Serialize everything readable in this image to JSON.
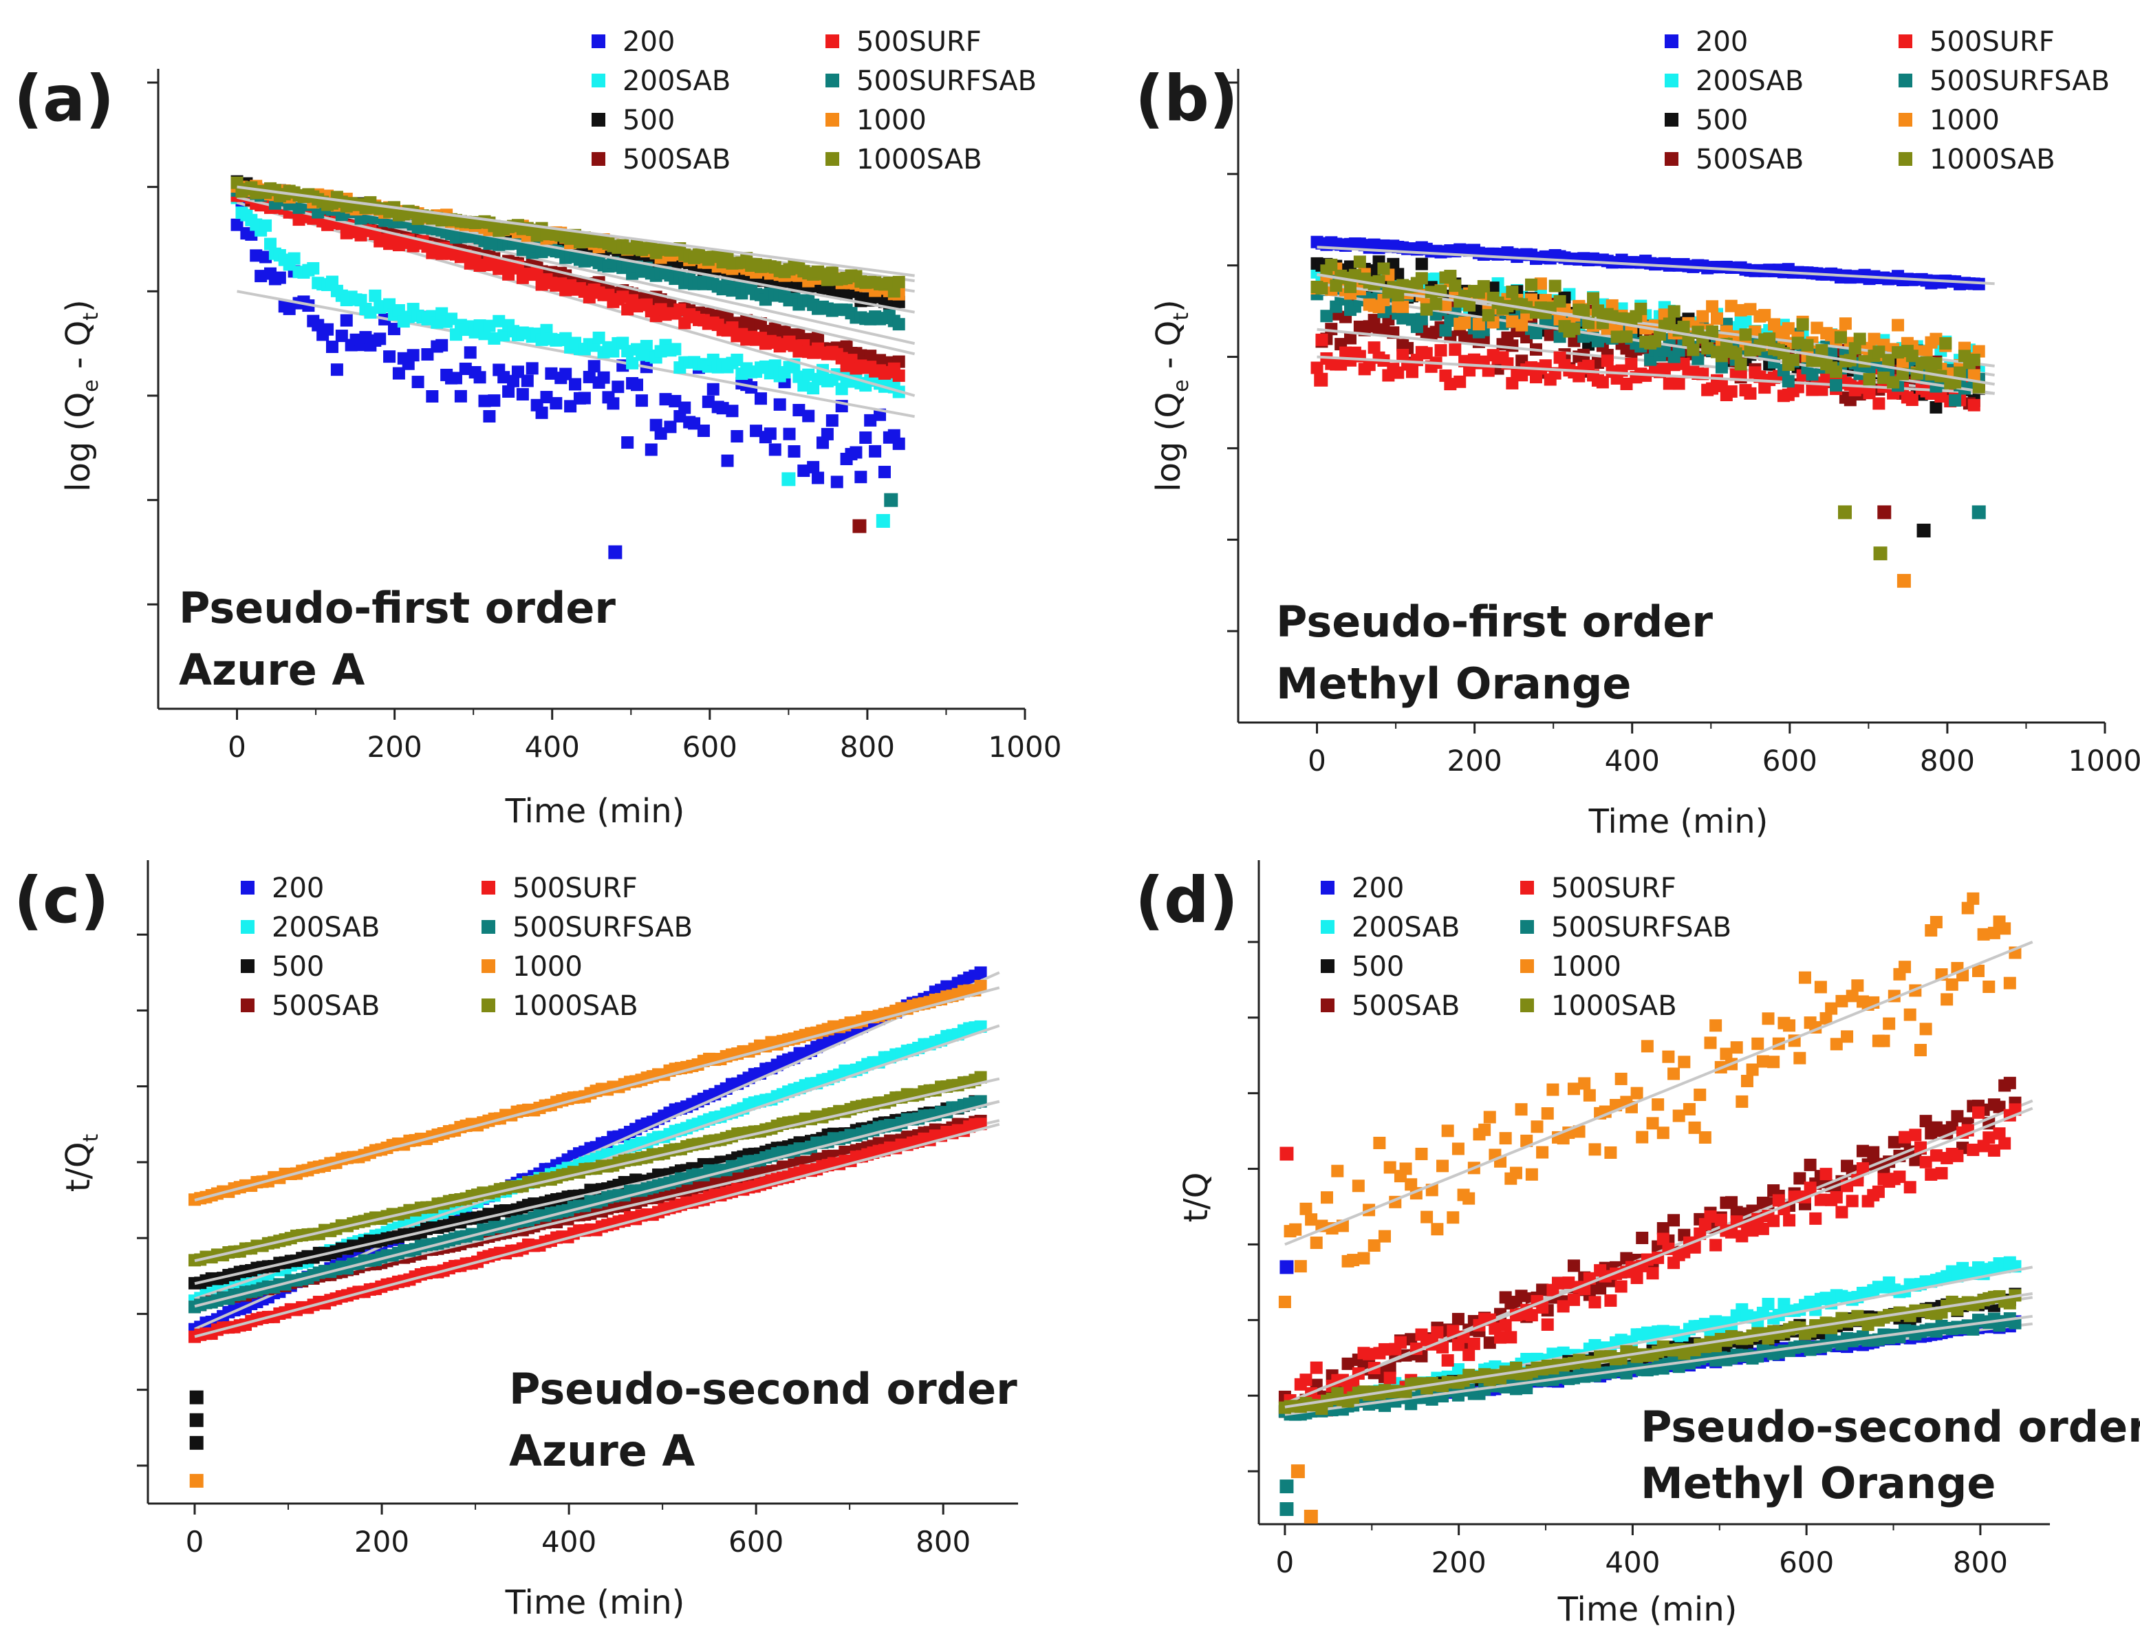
{
  "figure": {
    "series_names": [
      "200",
      "200SAB",
      "500",
      "500SAB",
      "500SURF",
      "500SURFSAB",
      "1000",
      "1000SAB"
    ],
    "series_colors": {
      "200": "#1414e6",
      "200SAB": "#19f0f0",
      "500": "#111111",
      "500SAB": "#8b1010",
      "500SURF": "#ee1c1c",
      "500SURFSAB": "#0f7f7c",
      "1000": "#f58a18",
      "1000SAB": "#7f8a14"
    },
    "fit_line_color": "#c8c8c8"
  },
  "chart_data": [
    {
      "panel": "(a)",
      "type": "scatter",
      "title": "Pseudo-first order",
      "subtitle": "Azure A",
      "xlabel": "Time (min)",
      "ylabel_main": "log (Q",
      "ylabel_sub1": "e",
      "ylabel_mid": " - Q",
      "ylabel_sub2": "t",
      "ylabel_end": ")",
      "xlim": [
        -100,
        1000
      ],
      "ylim": [
        0,
        6
      ],
      "xticks": [
        0,
        200,
        400,
        600,
        800,
        1000
      ],
      "xtick_labels": [
        "0",
        "200",
        "400",
        "600",
        "800",
        "1000"
      ],
      "yticks": [
        1,
        2,
        3,
        4,
        5,
        6
      ],
      "ytick_labels": [],
      "legend": [
        "200",
        "200SAB",
        "500",
        "500SAB",
        "500SURF",
        "500SURFSAB",
        "1000",
        "1000SAB"
      ],
      "legend_position": "top-right",
      "series": [
        {
          "name": "200",
          "model": "pfo",
          "y0": 4.6,
          "y1": 2.55,
          "noise": 0.35,
          "fit": [
            4.0,
            2.8
          ]
        },
        {
          "name": "200SAB",
          "model": "pfo",
          "y0": 4.85,
          "y1": 3.1,
          "noise": 0.08,
          "fit": [
            4.85,
            3.0
          ]
        },
        {
          "name": "500",
          "model": "linear",
          "y0": 5.0,
          "y1": 3.9,
          "noise": 0.04,
          "fit": [
            5.0,
            4.0
          ]
        },
        {
          "name": "500SAB",
          "model": "linear",
          "y0": 4.95,
          "y1": 3.3,
          "noise": 0.05,
          "fit": [
            4.95,
            3.5
          ]
        },
        {
          "name": "500SURF",
          "model": "linear",
          "y0": 4.9,
          "y1": 3.2,
          "noise": 0.05,
          "fit": [
            4.9,
            3.4
          ]
        },
        {
          "name": "500SURFSAB",
          "model": "linear",
          "y0": 4.97,
          "y1": 3.7,
          "noise": 0.04,
          "fit": [
            4.97,
            3.8
          ]
        },
        {
          "name": "1000",
          "model": "linear",
          "y0": 5.0,
          "y1": 4.0,
          "noise": 0.04,
          "fit": [
            5.0,
            4.1
          ]
        },
        {
          "name": "1000SAB",
          "model": "linear",
          "y0": 5.0,
          "y1": 4.05,
          "noise": 0.04,
          "fit": [
            5.0,
            4.15
          ]
        }
      ],
      "outliers": [
        {
          "name": "200",
          "x": 480,
          "y": 1.5
        },
        {
          "name": "200SAB",
          "x": 700,
          "y": 2.2
        },
        {
          "name": "500SAB",
          "x": 790,
          "y": 1.75
        },
        {
          "name": "500SURFSAB",
          "x": 830,
          "y": 2.0
        },
        {
          "name": "200SAB",
          "x": 820,
          "y": 1.8
        }
      ]
    },
    {
      "panel": "(b)",
      "type": "scatter",
      "title": "Pseudo-first order",
      "subtitle": "Methyl Orange",
      "xlabel": "Time (min)",
      "ylabel_main": "log (Q",
      "ylabel_sub1": "e",
      "ylabel_mid": " - Q",
      "ylabel_sub2": "t",
      "ylabel_end": ")",
      "xlim": [
        -100,
        1000
      ],
      "ylim": [
        0,
        7
      ],
      "xticks": [
        0,
        200,
        400,
        600,
        800,
        1000
      ],
      "xtick_labels": [
        "0",
        "200",
        "400",
        "600",
        "800",
        "1000"
      ],
      "yticks": [
        1,
        2,
        3,
        4,
        5,
        6,
        7
      ],
      "ytick_labels": [],
      "legend": [
        "200",
        "200SAB",
        "500",
        "500SAB",
        "500SURF",
        "500SURFSAB",
        "1000",
        "1000SAB"
      ],
      "legend_position": "top-right",
      "series": [
        {
          "name": "200",
          "model": "linear",
          "y0": 5.25,
          "y1": 4.8,
          "noise": 0.02,
          "fit": [
            5.2,
            4.8
          ]
        },
        {
          "name": "200SAB",
          "model": "linear",
          "y0": 4.9,
          "y1": 3.9,
          "noise": 0.15,
          "fit": [
            4.9,
            3.8
          ]
        },
        {
          "name": "500",
          "model": "linear",
          "y0": 5.0,
          "y1": 3.6,
          "noise": 0.2,
          "fit": [
            4.9,
            3.7
          ]
        },
        {
          "name": "500SAB",
          "model": "linear",
          "y0": 4.4,
          "y1": 3.7,
          "noise": 0.3,
          "fit": [
            4.3,
            3.6
          ]
        },
        {
          "name": "500SURF",
          "model": "linear",
          "y0": 4.0,
          "y1": 3.6,
          "noise": 0.15,
          "fit": [
            4.0,
            3.6
          ]
        },
        {
          "name": "500SURFSAB",
          "model": "linear",
          "y0": 4.7,
          "y1": 3.7,
          "noise": 0.2,
          "fit": [
            4.7,
            3.6
          ]
        },
        {
          "name": "1000",
          "model": "linear",
          "y0": 4.8,
          "y1": 4.0,
          "noise": 0.2,
          "fit": [
            4.8,
            3.9
          ]
        },
        {
          "name": "1000SAB",
          "model": "linear",
          "y0": 4.9,
          "y1": 3.8,
          "noise": 0.2,
          "fit": [
            4.9,
            3.7
          ]
        }
      ],
      "outliers": [
        {
          "name": "500SURF",
          "x": 5,
          "y": 3.75
        },
        {
          "name": "1000",
          "x": 745,
          "y": 1.55
        },
        {
          "name": "1000SAB",
          "x": 715,
          "y": 1.85
        },
        {
          "name": "500SAB",
          "x": 720,
          "y": 2.3
        },
        {
          "name": "500",
          "x": 770,
          "y": 2.1
        },
        {
          "name": "1000SAB",
          "x": 670,
          "y": 2.3
        },
        {
          "name": "500SURFSAB",
          "x": 840,
          "y": 2.3
        }
      ]
    },
    {
      "panel": "(c)",
      "type": "scatter",
      "title": "Pseudo-second order",
      "subtitle": "Azure A",
      "xlabel": "Time (min)",
      "ylabel_main": "t/Q",
      "ylabel_sub1": "t",
      "ylabel_mid": "",
      "ylabel_sub2": "",
      "ylabel_end": "",
      "xlim": [
        -50,
        880
      ],
      "ylim": [
        0,
        8.3
      ],
      "xticks": [
        0,
        200,
        400,
        600,
        800
      ],
      "xtick_labels": [
        "0",
        "200",
        "400",
        "600",
        "800"
      ],
      "yticks": [
        0.5,
        1.5,
        2.5,
        3.5,
        4.5,
        5.5,
        6.5,
        7.5,
        8.5
      ],
      "ytick_labels": [],
      "legend": [
        "200",
        "200SAB",
        "500",
        "500SAB",
        "500SURF",
        "500SURFSAB",
        "1000",
        "1000SAB"
      ],
      "legend_position": "top-left",
      "series": [
        {
          "name": "200",
          "model": "linear",
          "y0": 2.3,
          "y1": 7.0,
          "noise": 0.02,
          "fit": [
            2.3,
            7.0
          ]
        },
        {
          "name": "200SAB",
          "model": "linear",
          "y0": 2.7,
          "y1": 6.3,
          "noise": 0.02,
          "fit": [
            2.7,
            6.3
          ]
        },
        {
          "name": "500",
          "model": "linear",
          "y0": 2.9,
          "y1": 5.3,
          "noise": 0.02,
          "fit": [
            2.9,
            5.3
          ]
        },
        {
          "name": "500SAB",
          "model": "linear",
          "y0": 2.6,
          "y1": 5.05,
          "noise": 0.02,
          "fit": [
            2.6,
            5.05
          ]
        },
        {
          "name": "500SURF",
          "model": "linear",
          "y0": 2.2,
          "y1": 5.0,
          "noise": 0.02,
          "fit": [
            2.2,
            5.0
          ]
        },
        {
          "name": "500SURFSAB",
          "model": "linear",
          "y0": 2.6,
          "y1": 5.3,
          "noise": 0.02,
          "fit": [
            2.6,
            5.3
          ]
        },
        {
          "name": "1000",
          "model": "linear",
          "y0": 4.0,
          "y1": 6.8,
          "noise": 0.02,
          "fit": [
            4.0,
            6.8
          ]
        },
        {
          "name": "1000SAB",
          "model": "linear",
          "y0": 3.2,
          "y1": 5.6,
          "noise": 0.02,
          "fit": [
            3.2,
            5.6
          ]
        }
      ],
      "outliers": [
        {
          "name": "500",
          "x": 2,
          "y": 0.8
        },
        {
          "name": "500",
          "x": 2,
          "y": 1.1
        },
        {
          "name": "500",
          "x": 2,
          "y": 1.4
        },
        {
          "name": "1000",
          "x": 2,
          "y": 0.3
        }
      ]
    },
    {
      "panel": "(d)",
      "type": "scatter",
      "title": "Pseudo-second order",
      "subtitle": "Methyl Orange",
      "xlabel": "Time (min)",
      "ylabel_main": "t/Q",
      "ylabel_sub1": "",
      "ylabel_mid": "",
      "ylabel_sub2": "",
      "ylabel_end": "",
      "xlim": [
        -30,
        880
      ],
      "ylim": [
        0,
        8.6
      ],
      "xticks": [
        0,
        200,
        400,
        600,
        800
      ],
      "xtick_labels": [
        "0",
        "200",
        "400",
        "600",
        "800"
      ],
      "yticks": [
        0.7,
        1.7,
        2.7,
        3.7,
        4.7,
        5.7,
        6.7,
        7.7,
        8.7
      ],
      "ytick_labels": [],
      "legend": [
        "200",
        "200SAB",
        "500",
        "500SAB",
        "500SURF",
        "500SURFSAB",
        "1000",
        "1000SAB"
      ],
      "legend_position": "top-left",
      "series": [
        {
          "name": "200",
          "model": "linear",
          "y0": 1.5,
          "y1": 2.65,
          "noise": 0.04,
          "fit": [
            1.5,
            2.65
          ]
        },
        {
          "name": "200SAB",
          "model": "linear",
          "y0": 1.5,
          "y1": 3.45,
          "noise": 0.08,
          "fit": [
            1.5,
            3.4
          ]
        },
        {
          "name": "500",
          "model": "linear",
          "y0": 1.5,
          "y1": 3.0,
          "noise": 0.06,
          "fit": [
            1.5,
            3.0
          ]
        },
        {
          "name": "500SAB",
          "model": "linear",
          "y0": 1.6,
          "y1": 5.6,
          "noise": 0.25,
          "fit": [
            1.6,
            5.6
          ]
        },
        {
          "name": "500SURF",
          "model": "linear",
          "y0": 1.6,
          "y1": 5.3,
          "noise": 0.3,
          "fit": [
            1.6,
            5.5
          ]
        },
        {
          "name": "500SURFSAB",
          "model": "linear",
          "y0": 1.45,
          "y1": 2.7,
          "noise": 0.05,
          "fit": [
            1.45,
            2.75
          ]
        },
        {
          "name": "1000",
          "model": "linear",
          "y0": 3.7,
          "y1": 7.6,
          "noise": 0.65,
          "fit": [
            3.7,
            7.7
          ]
        },
        {
          "name": "1000SAB",
          "model": "linear",
          "y0": 1.55,
          "y1": 3.0,
          "noise": 0.06,
          "fit": [
            1.55,
            3.05
          ]
        }
      ],
      "outliers": [
        {
          "name": "500SURF",
          "x": 2,
          "y": 4.9
        },
        {
          "name": "200",
          "x": 2,
          "y": 3.4
        },
        {
          "name": "500SURFSAB",
          "x": 2,
          "y": 0.5
        },
        {
          "name": "500SURFSAB",
          "x": 2,
          "y": 0.2
        },
        {
          "name": "1000",
          "x": 15,
          "y": 0.7
        },
        {
          "name": "1000",
          "x": 30,
          "y": 0.1
        }
      ]
    }
  ]
}
